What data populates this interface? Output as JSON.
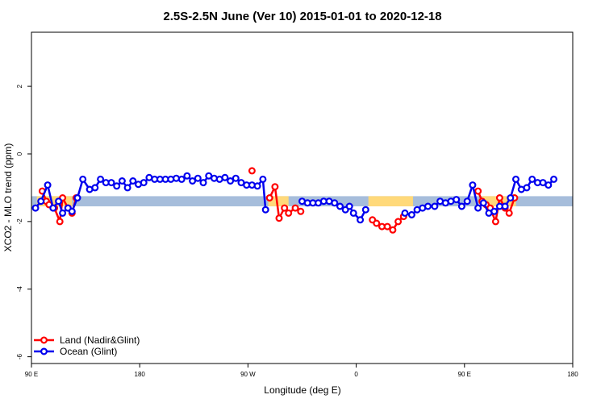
{
  "chart_data": {
    "type": "line",
    "title": "2.5S-2.5N June (Ver 10)   2015-01-01 to 2020-12-18",
    "xlabel": "Longitude (deg E)",
    "ylabel": "XCO2 - MLO trend (ppm)",
    "xlim": [
      90,
      490
    ],
    "ylim": [
      -6.2,
      3.6
    ],
    "x_ticks": [
      {
        "value": 90,
        "label": "90 E"
      },
      {
        "value": 170,
        "label": "180"
      },
      {
        "value": 250,
        "label": "90 W"
      },
      {
        "value": 330,
        "label": "0"
      },
      {
        "value": 410,
        "label": "90 E"
      },
      {
        "value": 490,
        "label": "180"
      }
    ],
    "y_ticks": [
      {
        "value": 2,
        "label": "2"
      },
      {
        "value": 0,
        "label": "0"
      },
      {
        "value": -2,
        "label": "-2"
      },
      {
        "value": -4,
        "label": "-4"
      },
      {
        "value": -6,
        "label": "-6"
      }
    ],
    "reference_band": {
      "y_low": -1.55,
      "y_high": -1.25,
      "color": "#a6bddb"
    },
    "highlight_bands": [
      {
        "x_range": [
          94,
          120
        ],
        "color": "#ffd97a"
      },
      {
        "x_range": [
          265,
          280
        ],
        "color": "#ffd97a"
      },
      {
        "x_range": [
          339,
          372
        ],
        "color": "#ffd97a"
      },
      {
        "x_range": [
          423,
          448
        ],
        "color": "#ffd97a"
      }
    ],
    "series": [
      {
        "name": "Land (Nadir&Glint)",
        "color": "#ff0000",
        "segments": [
          [
            [
              98,
              -1.1
            ],
            [
              101,
              -1.4
            ],
            [
              103,
              -1.5
            ],
            [
              107,
              -1.6
            ],
            [
              111,
              -2.0
            ],
            [
              113,
              -1.3
            ],
            [
              117,
              -1.6
            ],
            [
              120,
              -1.75
            ],
            [
              123,
              -1.3
            ]
          ],
          [
            [
              253,
              -0.5
            ]
          ],
          [
            [
              266,
              -1.3
            ],
            [
              270,
              -0.97
            ],
            [
              273,
              -1.9
            ],
            [
              277,
              -1.6
            ],
            [
              280,
              -1.75
            ],
            [
              285,
              -1.6
            ],
            [
              289,
              -1.7
            ]
          ],
          [
            [
              342,
              -1.95
            ],
            [
              345,
              -2.05
            ],
            [
              349,
              -2.15
            ],
            [
              353,
              -2.15
            ],
            [
              357,
              -2.25
            ],
            [
              361,
              -2.0
            ],
            [
              365,
              -1.85
            ]
          ],
          [
            [
              420,
              -1.1
            ],
            [
              423,
              -1.4
            ],
            [
              426,
              -1.5
            ],
            [
              429,
              -1.6
            ],
            [
              433,
              -2.0
            ],
            [
              436,
              -1.3
            ],
            [
              440,
              -1.6
            ],
            [
              443,
              -1.75
            ],
            [
              447,
              -1.3
            ]
          ]
        ]
      },
      {
        "name": "Ocean (Glint)",
        "color": "#0000ee",
        "segments": [
          [
            [
              93,
              -1.6
            ],
            [
              97,
              -1.4
            ],
            [
              102,
              -0.92
            ],
            [
              106,
              -1.6
            ],
            [
              110,
              -1.4
            ],
            [
              113,
              -1.75
            ],
            [
              117,
              -1.6
            ],
            [
              120,
              -1.7
            ],
            [
              124,
              -1.3
            ],
            [
              128,
              -0.75
            ],
            [
              133,
              -1.05
            ],
            [
              137,
              -1.0
            ],
            [
              141,
              -0.75
            ],
            [
              145,
              -0.85
            ],
            [
              149,
              -0.85
            ],
            [
              153,
              -0.95
            ],
            [
              157,
              -0.8
            ],
            [
              161,
              -1.0
            ],
            [
              165,
              -0.8
            ],
            [
              169,
              -0.9
            ],
            [
              173,
              -0.85
            ],
            [
              177,
              -0.7
            ],
            [
              181,
              -0.75
            ],
            [
              185,
              -0.75
            ],
            [
              189,
              -0.75
            ],
            [
              193,
              -0.75
            ],
            [
              197,
              -0.72
            ],
            [
              201,
              -0.75
            ],
            [
              205,
              -0.65
            ],
            [
              209,
              -0.8
            ],
            [
              213,
              -0.72
            ],
            [
              217,
              -0.85
            ],
            [
              221,
              -0.65
            ],
            [
              225,
              -0.72
            ],
            [
              229,
              -0.75
            ],
            [
              233,
              -0.7
            ],
            [
              237,
              -0.8
            ],
            [
              241,
              -0.72
            ],
            [
              245,
              -0.85
            ],
            [
              249,
              -0.92
            ],
            [
              253,
              -0.92
            ],
            [
              257,
              -0.95
            ],
            [
              261,
              -0.75
            ],
            [
              263,
              -1.65
            ]
          ],
          [
            [
              290,
              -1.4
            ],
            [
              294,
              -1.45
            ],
            [
              298,
              -1.45
            ],
            [
              302,
              -1.45
            ],
            [
              306,
              -1.4
            ],
            [
              310,
              -1.4
            ],
            [
              314,
              -1.45
            ],
            [
              318,
              -1.55
            ],
            [
              322,
              -1.65
            ],
            [
              325,
              -1.55
            ],
            [
              328,
              -1.75
            ],
            [
              333,
              -1.95
            ],
            [
              337,
              -1.65
            ]
          ],
          [
            [
              366,
              -1.75
            ],
            [
              371,
              -1.8
            ],
            [
              375,
              -1.65
            ],
            [
              379,
              -1.6
            ],
            [
              383,
              -1.55
            ],
            [
              388,
              -1.55
            ],
            [
              392,
              -1.4
            ],
            [
              396,
              -1.45
            ],
            [
              400,
              -1.4
            ],
            [
              404,
              -1.35
            ],
            [
              408,
              -1.55
            ],
            [
              412,
              -1.4
            ],
            [
              416,
              -0.92
            ],
            [
              420,
              -1.6
            ],
            [
              424,
              -1.45
            ],
            [
              428,
              -1.75
            ],
            [
              432,
              -1.7
            ],
            [
              436,
              -1.55
            ],
            [
              440,
              -1.55
            ],
            [
              444,
              -1.3
            ],
            [
              448,
              -0.75
            ],
            [
              452,
              -1.05
            ],
            [
              456,
              -1.0
            ],
            [
              460,
              -0.75
            ],
            [
              464,
              -0.85
            ],
            [
              468,
              -0.85
            ],
            [
              472,
              -0.92
            ],
            [
              476,
              -0.75
            ]
          ]
        ]
      }
    ],
    "legend": {
      "position": "bottom-left"
    }
  }
}
